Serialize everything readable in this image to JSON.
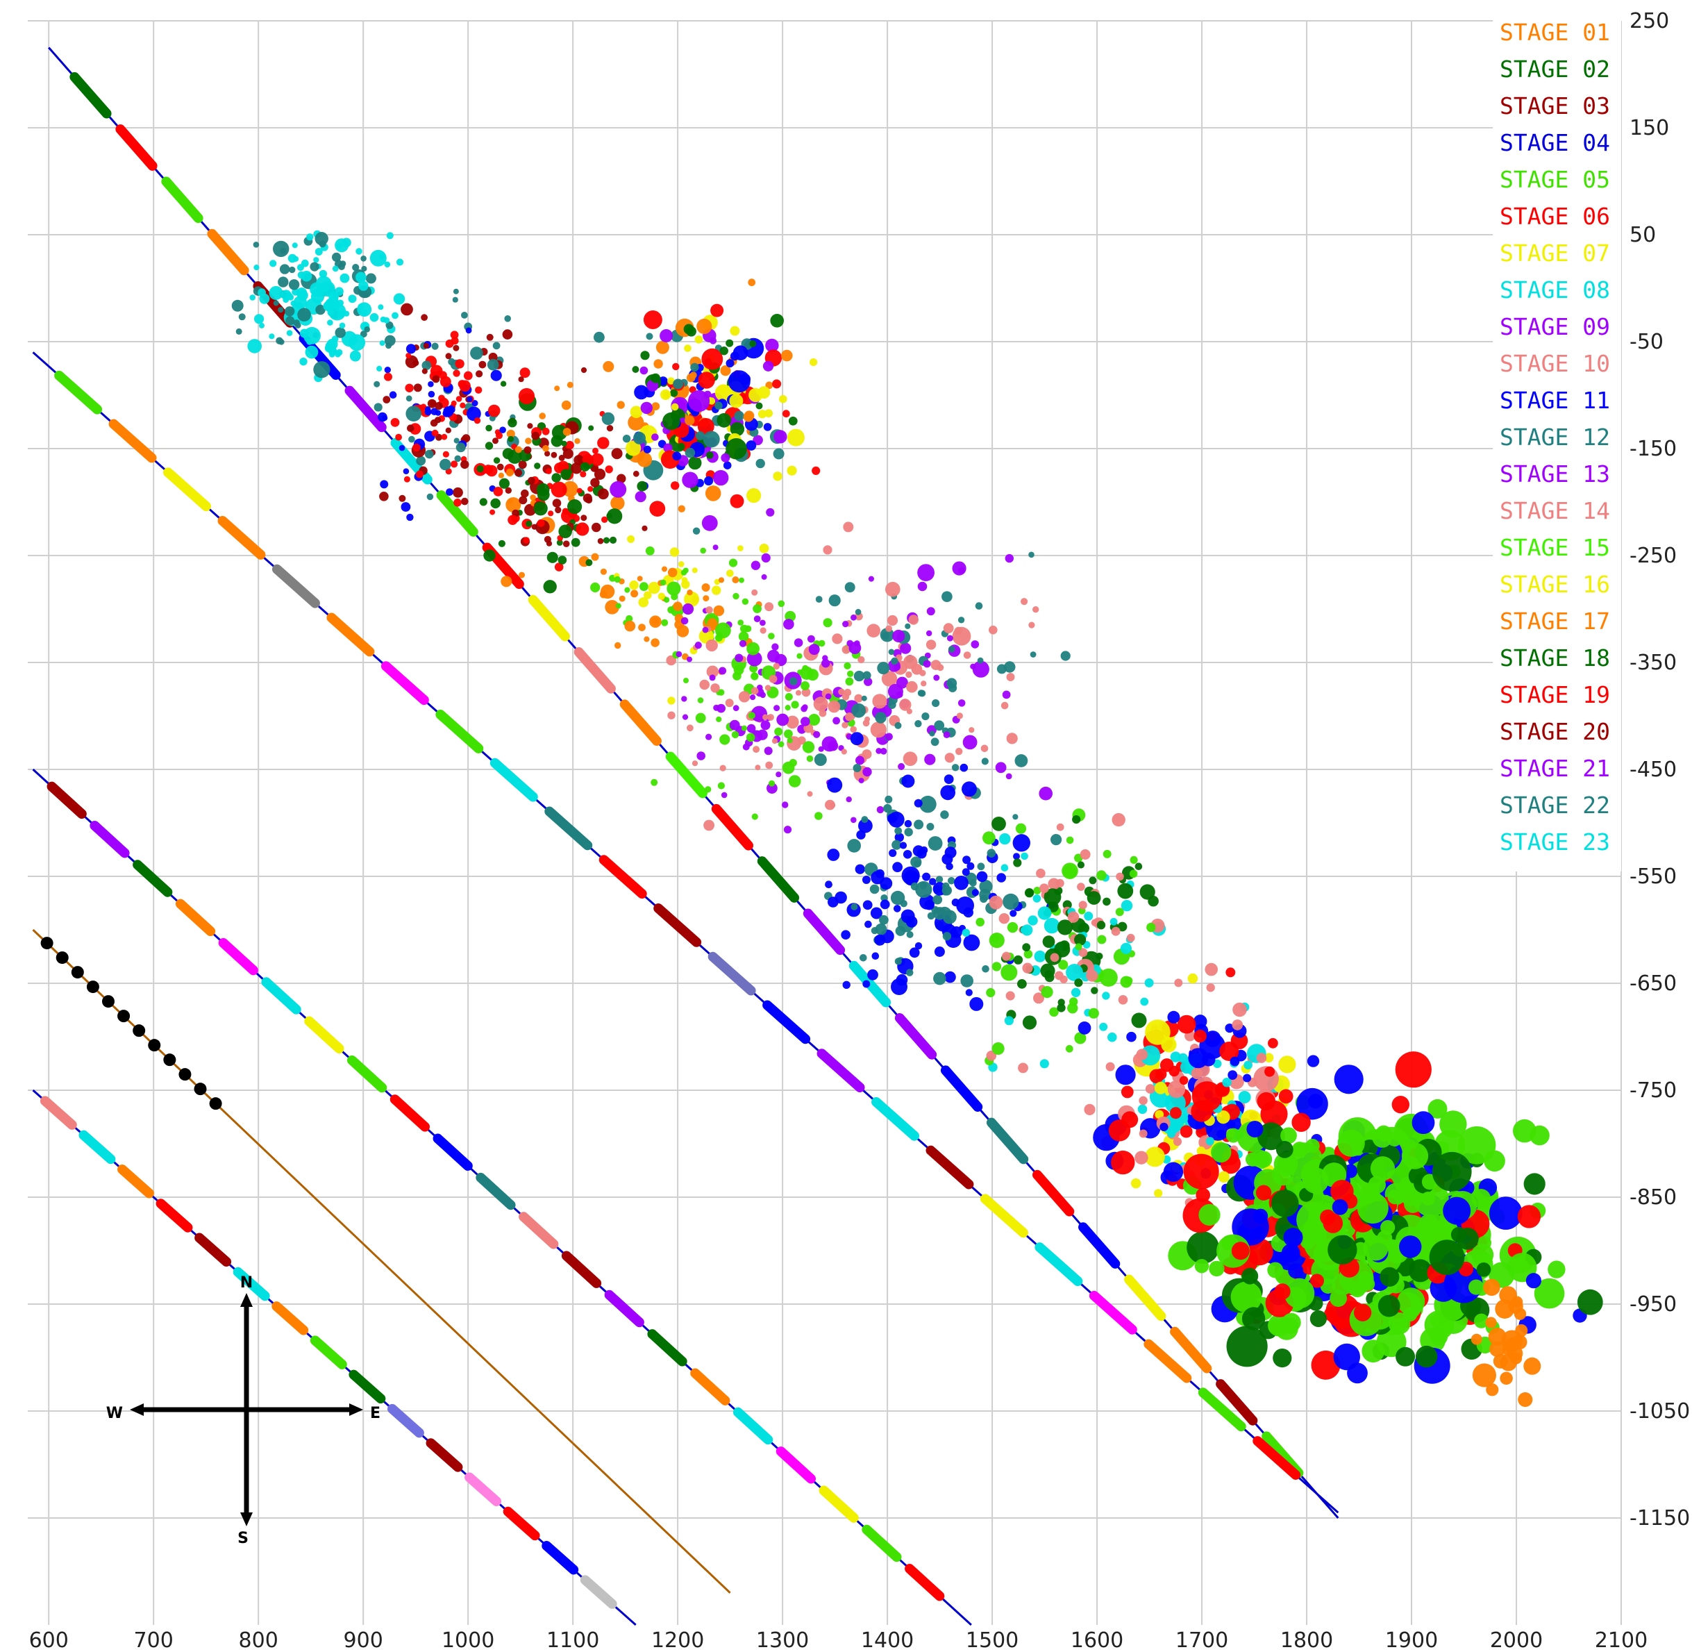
{
  "chart_data": {
    "type": "scatter",
    "title": "",
    "xlabel": "",
    "ylabel": "",
    "xlim": [
      580,
      2100
    ],
    "ylim": [
      -1250,
      250
    ],
    "x_ticks": [
      "600",
      "700",
      "800",
      "900",
      "1000",
      "1100",
      "1200",
      "1300",
      "1400",
      "1500",
      "1600",
      "1700",
      "1800",
      "1900",
      "2000",
      "2100"
    ],
    "y_ticks": [
      "250",
      "150",
      "50",
      "-50",
      "-150",
      "-250",
      "-350",
      "-450",
      "-550",
      "-650",
      "-750",
      "-850",
      "-950",
      "-1050",
      "-1150"
    ],
    "grid": true,
    "legend_position": "top-right",
    "compass": {
      "north": "N",
      "south": "S",
      "east": "E",
      "west": "W"
    },
    "series": [
      {
        "name": "STAGE 01",
        "color": "#ff8000"
      },
      {
        "name": "STAGE 02",
        "color": "#007000"
      },
      {
        "name": "STAGE 03",
        "color": "#a00000"
      },
      {
        "name": "STAGE 04",
        "color": "#0000e0"
      },
      {
        "name": "STAGE 05",
        "color": "#40e000"
      },
      {
        "name": "STAGE 06",
        "color": "#ff0000"
      },
      {
        "name": "STAGE 07",
        "color": "#f0f000"
      },
      {
        "name": "STAGE 08",
        "color": "#00e0e0"
      },
      {
        "name": "STAGE 09",
        "color": "#a000ff"
      },
      {
        "name": "STAGE 10",
        "color": "#f08080"
      },
      {
        "name": "STAGE 11",
        "color": "#0000ff"
      },
      {
        "name": "STAGE 12",
        "color": "#208080"
      },
      {
        "name": "STAGE 13",
        "color": "#a000ff"
      },
      {
        "name": "STAGE 14",
        "color": "#f08080"
      },
      {
        "name": "STAGE 15",
        "color": "#40f000"
      },
      {
        "name": "STAGE 16",
        "color": "#f0f000"
      },
      {
        "name": "STAGE 17",
        "color": "#ff8000"
      },
      {
        "name": "STAGE 18",
        "color": "#007000"
      },
      {
        "name": "STAGE 19",
        "color": "#ff0000"
      },
      {
        "name": "STAGE 20",
        "color": "#a00000"
      },
      {
        "name": "STAGE 21",
        "color": "#a000ff"
      },
      {
        "name": "STAGE 22",
        "color": "#208080"
      },
      {
        "name": "STAGE 23",
        "color": "#00e0e0"
      }
    ],
    "wells": [
      {
        "id": "well-a",
        "color": "#0000cc",
        "start": [
          600,
          225
        ],
        "end": [
          1830,
          -1150
        ],
        "segments": [
          "#007000",
          "#ff0000",
          "#40e000",
          "#ff8000",
          "#a00000",
          "#0000ff",
          "#a000ff",
          "#00e0e0",
          "#40e000",
          "#ff0000",
          "#f0f000",
          "#f08080",
          "#ff8000",
          "#40f000",
          "#ff0000",
          "#007000",
          "#a000ff",
          "#00e0e0",
          "#a000ff",
          "#0000ff",
          "#208080",
          "#ff0000",
          "#0000ff",
          "#f0f000",
          "#ff8000",
          "#a00000",
          "#40e000"
        ]
      },
      {
        "id": "well-b",
        "color": "#0000cc",
        "start": [
          585,
          -60
        ],
        "end": [
          1830,
          -1145
        ],
        "segments": [
          "#40e000",
          "#ff8000",
          "#f0f000",
          "#ff8000",
          "#808080",
          "#ff8000",
          "#ff00ff",
          "#40e000",
          "#00e0e0",
          "#208080",
          "#ff0000",
          "#a00000",
          "#7070c0",
          "#0000ff",
          "#a000ff",
          "#00e0e0",
          "#a00000",
          "#f0f000",
          "#00e0e0",
          "#ff00ff",
          "#ff8000",
          "#40e000",
          "#ff0000"
        ]
      },
      {
        "id": "well-c",
        "color": "#0000cc",
        "start": [
          585,
          -450
        ],
        "end": [
          1480,
          -1250
        ],
        "segments": [
          "#a00000",
          "#a000ff",
          "#007000",
          "#ff8000",
          "#ff00ff",
          "#00e0e0",
          "#f0f000",
          "#40e000",
          "#ff0000",
          "#0000ff",
          "#208080",
          "#f08080",
          "#a00000",
          "#a000ff",
          "#007000",
          "#ff8000",
          "#00e0e0",
          "#ff00ff",
          "#f0f000",
          "#40e000",
          "#ff0000"
        ]
      },
      {
        "id": "well-d",
        "color": "#b06000",
        "start": [
          585,
          -600
        ],
        "end": [
          1250,
          -1220
        ],
        "segments": [
          "#000000"
        ]
      },
      {
        "id": "well-e",
        "color": "#0000cc",
        "start": [
          585,
          -750
        ],
        "end": [
          1160,
          -1250
        ],
        "segments": [
          "#f08080",
          "#00e0e0",
          "#ff8000",
          "#ff0000",
          "#a00000",
          "#00e0e0",
          "#ff8000",
          "#40e000",
          "#007000",
          "#7070e0",
          "#a00000",
          "#ff80e0",
          "#ff0000",
          "#0000ff",
          "#c0c0c0"
        ]
      }
    ],
    "clusters": [
      {
        "center": [
          860,
          -10
        ],
        "spread": [
          70,
          60
        ],
        "count": 160,
        "size": [
          4,
          14
        ],
        "colors": [
          "#00e0e0",
          "#00e0e0",
          "#208080"
        ]
      },
      {
        "center": [
          980,
          -120
        ],
        "spread": [
          70,
          80
        ],
        "count": 170,
        "size": [
          4,
          12
        ],
        "colors": [
          "#0000ff",
          "#a00000",
          "#208080",
          "#ff0000"
        ]
      },
      {
        "center": [
          1080,
          -180
        ],
        "spread": [
          70,
          80
        ],
        "count": 170,
        "size": [
          4,
          14
        ],
        "colors": [
          "#ff0000",
          "#007000",
          "#a00000",
          "#ff8000"
        ]
      },
      {
        "center": [
          1230,
          -120
        ],
        "spread": [
          80,
          90
        ],
        "count": 240,
        "size": [
          5,
          18
        ],
        "colors": [
          "#ff8000",
          "#ff0000",
          "#007000",
          "#f0f000",
          "#208080",
          "#a000ff",
          "#0000ff"
        ]
      },
      {
        "center": [
          1200,
          -290
        ],
        "spread": [
          70,
          60
        ],
        "count": 90,
        "size": [
          4,
          12
        ],
        "colors": [
          "#f0f000",
          "#40e000",
          "#ff8000"
        ]
      },
      {
        "center": [
          1290,
          -380
        ],
        "spread": [
          90,
          100
        ],
        "count": 200,
        "size": [
          4,
          13
        ],
        "colors": [
          "#40e000",
          "#f08080",
          "#a000ff"
        ]
      },
      {
        "center": [
          1420,
          -370
        ],
        "spread": [
          110,
          110
        ],
        "count": 180,
        "size": [
          4,
          14
        ],
        "colors": [
          "#a000ff",
          "#f08080",
          "#208080"
        ]
      },
      {
        "center": [
          1440,
          -560
        ],
        "spread": [
          90,
          100
        ],
        "count": 160,
        "size": [
          5,
          14
        ],
        "colors": [
          "#0000ff",
          "#208080"
        ]
      },
      {
        "center": [
          1580,
          -600
        ],
        "spread": [
          90,
          100
        ],
        "count": 180,
        "size": [
          5,
          14
        ],
        "colors": [
          "#f08080",
          "#40e000",
          "#00e0e0",
          "#007000"
        ]
      },
      {
        "center": [
          1700,
          -760
        ],
        "spread": [
          90,
          80
        ],
        "count": 220,
        "size": [
          6,
          22
        ],
        "colors": [
          "#ff0000",
          "#f0f000",
          "#00e0e0",
          "#0000ff",
          "#f08080"
        ]
      },
      {
        "center": [
          1860,
          -880
        ],
        "spread": [
          140,
          110
        ],
        "count": 520,
        "size": [
          10,
          32
        ],
        "colors": [
          "#40e000",
          "#40e000",
          "#40e000",
          "#007000",
          "#0000ff",
          "#ff0000"
        ]
      },
      {
        "center": [
          1990,
          -990
        ],
        "spread": [
          30,
          60
        ],
        "count": 25,
        "size": [
          8,
          20
        ],
        "colors": [
          "#ff8000"
        ]
      }
    ]
  }
}
